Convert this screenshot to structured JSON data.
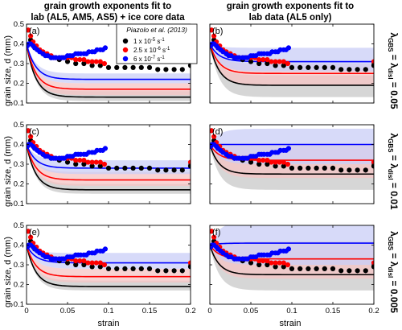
{
  "figure": {
    "col_titles": [
      [
        "grain growth exponents fit to",
        "lab (AL5, AM5, AS5) + ice core data"
      ],
      [
        "grain growth exponents fit to",
        "lab data (AL5 only)"
      ]
    ],
    "row_labels": [
      {
        "prefix": "λ",
        "sub1": "GBS",
        "mid": " = λ",
        "sub2": "disl",
        "val": " = 0.05"
      },
      {
        "prefix": "λ",
        "sub1": "GBS",
        "mid": " = λ",
        "sub2": "disl",
        "val": " = 0.01"
      },
      {
        "prefix": "λ",
        "sub1": "GBS",
        "mid": " = λ",
        "sub2": "disl",
        "val": " = 0.005"
      }
    ],
    "ylabel": "grain size, d (mm)",
    "xlabel": "strain",
    "legend": {
      "title": "Piazolo et al. (2013)",
      "entries": [
        {
          "base": "1 x 10",
          "exp": "-5",
          "unit": " s",
          "unit_exp": "-1",
          "color": "#000000"
        },
        {
          "base": "2.5 x 10",
          "exp": "-6",
          "unit": " s",
          "unit_exp": "-1",
          "color": "#ff0000"
        },
        {
          "base": "6 x 10",
          "exp": "-7",
          "unit": " s",
          "unit_exp": "-1",
          "color": "#0000ff"
        }
      ]
    },
    "colors": {
      "black": "#000000",
      "red": "#ff0000",
      "blue": "#0000ff",
      "black_band": "#c8c8c8",
      "red_band": "#f6c4c4",
      "blue_band": "#c9cdf7"
    }
  },
  "chart_data": {
    "type": "scatter",
    "xlim": [
      0,
      0.2
    ],
    "ylim": [
      0.1,
      0.5
    ],
    "xticks": [
      0,
      0.05,
      0.1,
      0.15,
      0.2
    ],
    "xtick_labels": [
      "0",
      "0.05",
      "0.1",
      "0.15",
      "0.2"
    ],
    "yticks": [
      0.1,
      0.2,
      0.3,
      0.4,
      0.5
    ],
    "ytick_labels": [
      "0.1",
      "0.2",
      "0.3",
      "0.4",
      "0.5"
    ],
    "panels": [
      {
        "label": "(a)",
        "models": [
          {
            "color": "black",
            "mean": 0.13,
            "low": 0.11,
            "high": 0.16
          },
          {
            "color": "red",
            "mean": 0.17,
            "low": 0.14,
            "high": 0.2
          },
          {
            "color": "blue",
            "mean": 0.22,
            "low": 0.2,
            "high": 0.25
          }
        ]
      },
      {
        "label": "(b)",
        "models": [
          {
            "color": "black",
            "mean": 0.19,
            "low": 0.13,
            "high": 0.24
          },
          {
            "color": "red",
            "mean": 0.25,
            "low": 0.19,
            "high": 0.3
          },
          {
            "color": "blue",
            "mean": 0.31,
            "low": 0.26,
            "high": 0.38
          }
        ]
      },
      {
        "label": "(c)",
        "models": [
          {
            "color": "black",
            "mean": 0.17,
            "low": 0.15,
            "high": 0.2
          },
          {
            "color": "red",
            "mean": 0.22,
            "low": 0.19,
            "high": 0.26
          },
          {
            "color": "blue",
            "mean": 0.28,
            "low": 0.25,
            "high": 0.32
          }
        ]
      },
      {
        "label": "(d)",
        "models": [
          {
            "color": "black",
            "mean": 0.25,
            "low": 0.17,
            "high": 0.32
          },
          {
            "color": "red",
            "mean": 0.32,
            "low": 0.23,
            "high": 0.4
          },
          {
            "color": "blue",
            "mean": 0.4,
            "low": 0.3,
            "high": 0.48
          }
        ]
      },
      {
        "label": "(e)",
        "models": [
          {
            "color": "black",
            "mean": 0.19,
            "low": 0.17,
            "high": 0.22
          },
          {
            "color": "red",
            "mean": 0.24,
            "low": 0.21,
            "high": 0.28
          },
          {
            "color": "blue",
            "mean": 0.31,
            "low": 0.28,
            "high": 0.36
          }
        ]
      },
      {
        "label": "(f)",
        "models": [
          {
            "color": "black",
            "mean": 0.25,
            "low": 0.17,
            "high": 0.33
          },
          {
            "color": "red",
            "mean": 0.33,
            "low": 0.23,
            "high": 0.42
          },
          {
            "color": "blue",
            "mean": 0.41,
            "low": 0.3,
            "high": 0.52
          }
        ]
      }
    ],
    "observations": {
      "black": {
        "x": [
          0.002,
          0.005,
          0.01,
          0.02,
          0.03,
          0.04,
          0.05,
          0.06,
          0.07,
          0.08,
          0.09,
          0.1,
          0.11,
          0.12,
          0.13,
          0.14,
          0.15,
          0.16,
          0.17,
          0.18,
          0.19,
          0.2
        ],
        "y": [
          0.47,
          0.42,
          0.38,
          0.35,
          0.33,
          0.32,
          0.31,
          0.3,
          0.3,
          0.29,
          0.29,
          0.28,
          0.28,
          0.28,
          0.28,
          0.28,
          0.28,
          0.27,
          0.27,
          0.27,
          0.27,
          0.29
        ]
      },
      "red": {
        "x": [
          0.002,
          0.005,
          0.008,
          0.012,
          0.016,
          0.02,
          0.025,
          0.03,
          0.035,
          0.04,
          0.045,
          0.05,
          0.055,
          0.06,
          0.065,
          0.07,
          0.075,
          0.08,
          0.085,
          0.09,
          0.095,
          0.2
        ],
        "y": [
          0.47,
          0.44,
          0.41,
          0.39,
          0.37,
          0.36,
          0.35,
          0.34,
          0.33,
          0.33,
          0.33,
          0.33,
          0.33,
          0.32,
          0.32,
          0.32,
          0.31,
          0.31,
          0.31,
          0.31,
          0.3,
          0.31
        ]
      },
      "blue": {
        "x": [
          0.001,
          0.003,
          0.005,
          0.008,
          0.01,
          0.013,
          0.016,
          0.02,
          0.023,
          0.026,
          0.03,
          0.033,
          0.036,
          0.04,
          0.043,
          0.046,
          0.05,
          0.053,
          0.056,
          0.06,
          0.063,
          0.066,
          0.07,
          0.073,
          0.076,
          0.08,
          0.083,
          0.086,
          0.09,
          0.093,
          0.096
        ],
        "y": [
          0.39,
          0.4,
          0.4,
          0.39,
          0.38,
          0.37,
          0.36,
          0.35,
          0.34,
          0.34,
          0.33,
          0.33,
          0.33,
          0.33,
          0.33,
          0.33,
          0.34,
          0.34,
          0.34,
          0.35,
          0.35,
          0.35,
          0.35,
          0.35,
          0.36,
          0.36,
          0.36,
          0.37,
          0.37,
          0.37,
          0.38
        ]
      }
    }
  }
}
